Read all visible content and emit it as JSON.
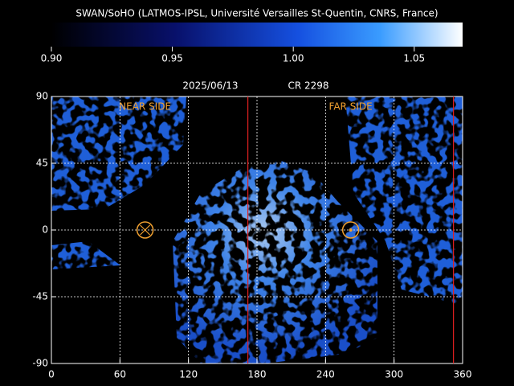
{
  "title": "SWAN/SoHO (LATMOS-IPSL, Université Versailles St-Quentin, CNRS, France)",
  "colorbar": {
    "lim": [
      0.9,
      1.07
    ],
    "ticks": [
      {
        "value": 0.9,
        "label": "0.90"
      },
      {
        "value": 0.95,
        "label": "0.95"
      },
      {
        "value": 1,
        "label": "1.00"
      },
      {
        "value": 1.05,
        "label": "1.05"
      }
    ]
  },
  "map": {
    "date": "2025/06/13",
    "rotation": "CR 2298",
    "xlim": [
      0,
      360
    ],
    "ylim": [
      -90,
      90
    ],
    "xticks": [
      0,
      60,
      120,
      180,
      240,
      300,
      360
    ],
    "yticks": [
      90,
      45,
      0,
      -45,
      -90
    ],
    "grid": true,
    "near_side": {
      "label": "NEAR SIDE",
      "longitude": 82
    },
    "far_side": {
      "label": "FAR SIDE",
      "longitude": 262
    },
    "red_lines": [
      172,
      352
    ]
  }
}
